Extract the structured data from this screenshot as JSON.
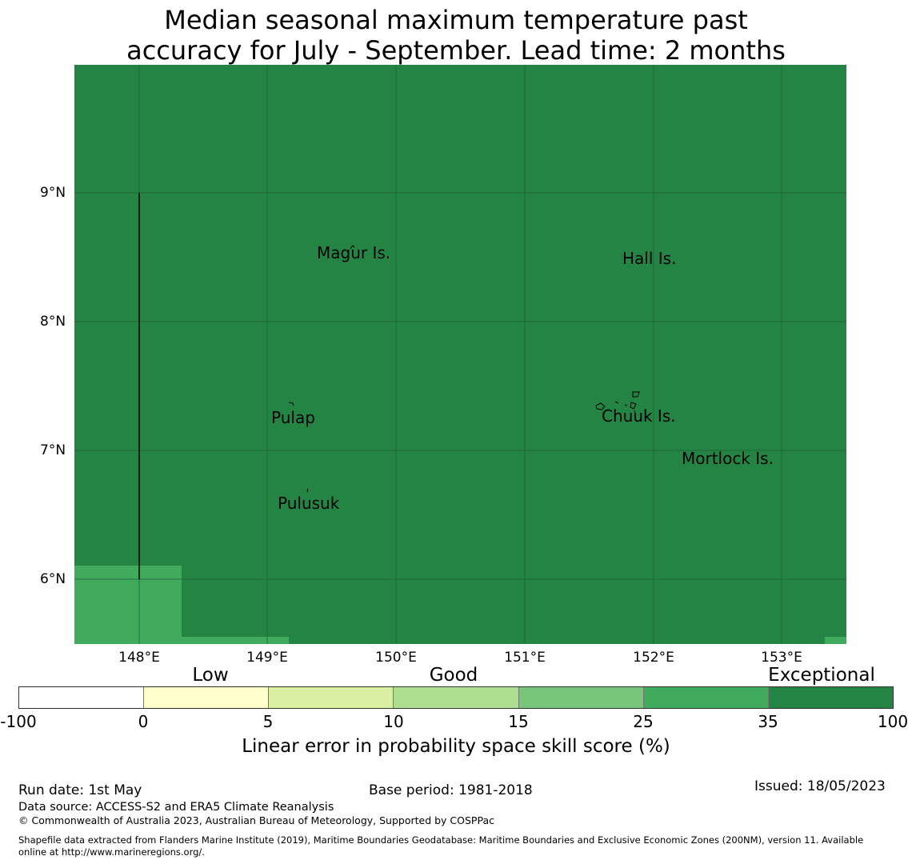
{
  "title": {
    "line1": "Median seasonal maximum temperature past",
    "line2": "accuracy for July - September. Lead time: 2 months"
  },
  "map": {
    "background_color": "#238443",
    "patch_color": "#41ab5d",
    "grid_color": "#1a5e31",
    "lat_labels": [
      "9°N",
      "8°N",
      "7°N",
      "6°N"
    ],
    "lon_labels": [
      "148°E",
      "149°E",
      "150°E",
      "151°E",
      "152°E",
      "153°E"
    ],
    "place_labels": {
      "magur": "Magur Is.",
      "hall": "Hall Is.",
      "pulap": "Pulap",
      "chuuk": "Chuuk Is.",
      "mortlock": "Mortlock Is.",
      "pulusuk": "Pulusuk"
    }
  },
  "colorbar": {
    "category_labels": {
      "low": "Low",
      "good": "Good",
      "exceptional": "Exceptional"
    },
    "tick_labels": [
      "-100",
      "0",
      "5",
      "10",
      "15",
      "25",
      "35",
      "100"
    ],
    "colors": [
      "#ffffff",
      "#ffffcc",
      "#d9f0a3",
      "#addd8e",
      "#78c679",
      "#41ab5d",
      "#238443"
    ],
    "title": "Linear error in probability space skill score (%)"
  },
  "footer": {
    "run_date": "Run date: 1st May",
    "base_period": "Base period: 1981-2018",
    "issued": "Issued: 18/05/2023",
    "data_source": "Data source: ACCESS-S2 and ERA5 Climate Reanalysis",
    "copyright": "© Commonwealth of Australia 2023, Australian Bureau of Meteorology, Supported by COSPPac",
    "shapefile_line1": "Shapefile data extracted from Flanders Marine Institute (2019), Maritime Boundaries Geodatabase: Maritime Boundaries and Exclusive Economic Zones (200NM), version 11. Available",
    "shapefile_line2": "online at http://www.marineregions.org/."
  }
}
